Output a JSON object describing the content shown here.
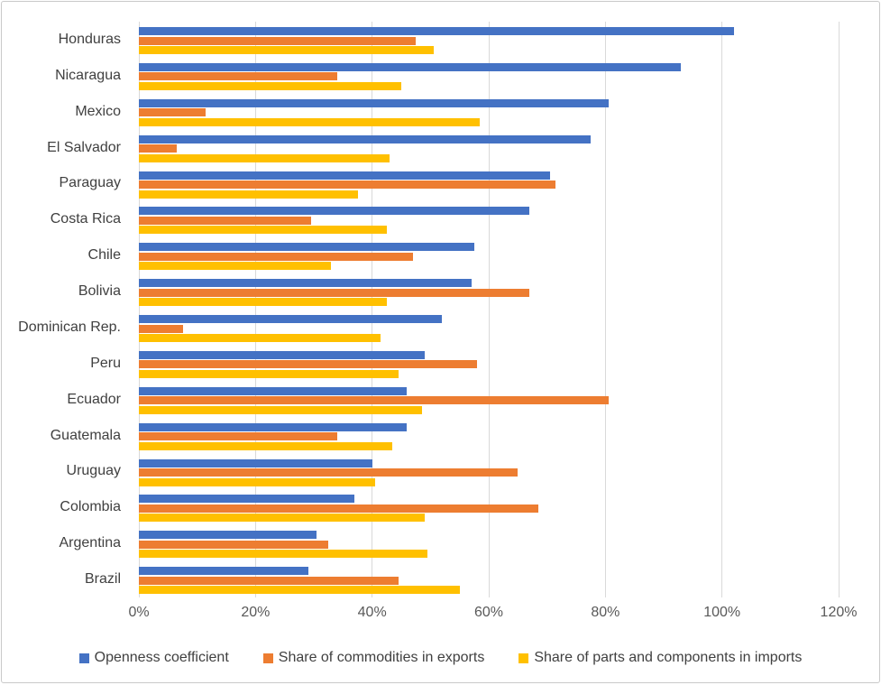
{
  "chart_data": {
    "type": "bar",
    "orientation": "horizontal",
    "title": "",
    "xlabel": "",
    "ylabel": "",
    "xlim": [
      0,
      120
    ],
    "grid": true,
    "legend_position": "bottom",
    "x_tick_values": [
      0,
      20,
      40,
      60,
      80,
      100,
      120
    ],
    "x_tick_labels": [
      "0%",
      "20%",
      "40%",
      "60%",
      "80%",
      "100%",
      "120%"
    ],
    "categories": [
      "Honduras",
      "Nicaragua",
      "Mexico",
      "El Salvador",
      "Paraguay",
      "Costa Rica",
      "Chile",
      "Bolivia",
      "Dominican Rep.",
      "Peru",
      "Ecuador",
      "Guatemala",
      "Uruguay",
      "Colombia",
      "Argentina",
      "Brazil"
    ],
    "series": [
      {
        "name": "Openness coefficient",
        "color": "#4472C4",
        "values": [
          102,
          93,
          80.5,
          77.5,
          70.5,
          67,
          57.5,
          57,
          52,
          49,
          46,
          46,
          40,
          37,
          30.5,
          29
        ]
      },
      {
        "name": "Share of commodities in exports",
        "color": "#ED7D31",
        "values": [
          47.5,
          34,
          11.5,
          6.5,
          71.5,
          29.5,
          47,
          67,
          7.5,
          58,
          80.5,
          34,
          65,
          68.5,
          32.5,
          44.5
        ]
      },
      {
        "name": "Share of parts and components in imports",
        "color": "#FFC000",
        "values": [
          50.5,
          45,
          58.5,
          43,
          37.5,
          42.5,
          33,
          42.5,
          41.5,
          44.5,
          48.5,
          43.5,
          40.5,
          49,
          49.5,
          55
        ]
      }
    ],
    "colors": {
      "gridline": "#D9D9D9",
      "axis_text": "#595959",
      "category_text": "#404040",
      "border": "#C9C9C9",
      "background": "#FFFFFF"
    }
  }
}
